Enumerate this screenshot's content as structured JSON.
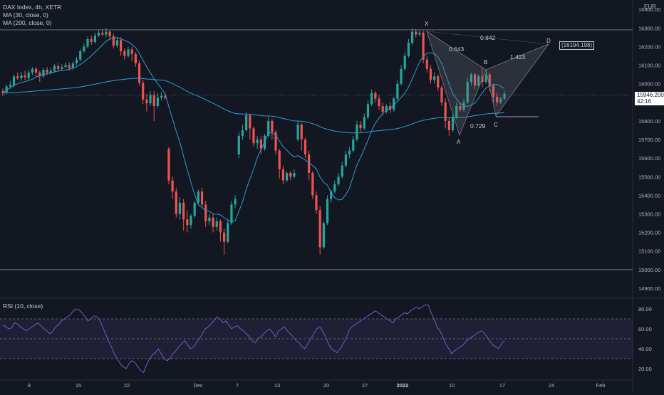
{
  "chart_data": {
    "type": "candlestick",
    "title": "DAX Index, 4h, XETR",
    "currency": "EUR",
    "overlays": [
      {
        "name": "MA (30, close, 0)",
        "color": "#2a9fd6"
      },
      {
        "name": "MA (200, close, 0)",
        "color": "#2a9fd6"
      }
    ],
    "colors": {
      "up": "#26a69a",
      "down": "#ef5350",
      "rsi": "#7e57c2",
      "pattern": "#787b86"
    },
    "price_axis": {
      "min": 14850,
      "max": 16420,
      "ticks": [
        "14900.00",
        "15000.00",
        "15100.00",
        "15200.00",
        "15300.00",
        "15400.00",
        "15500.00",
        "15600.00",
        "15700.00",
        "15800.00",
        "15900.00",
        "16000.00",
        "16100.00",
        "16200.00",
        "16300.00",
        "16400.00"
      ]
    },
    "time_axis": {
      "labels": [
        "8",
        "15",
        "22",
        "Dec",
        "7",
        "13",
        "20",
        "27",
        "2022",
        "10",
        "17",
        "24",
        "Feb"
      ]
    },
    "last_price": "15946.200",
    "countdown": "42:16",
    "horizontal_levels": [
      16290,
      15000,
      15940
    ],
    "pattern": {
      "points": {
        "X": "X",
        "A": "A",
        "B": "B",
        "C": "C",
        "D": "D"
      },
      "ratios": [
        "0.643",
        "0.842",
        "1.423",
        "0.729"
      ],
      "target": "(16194.198)"
    },
    "rsi": {
      "name": "RSI (10, close)",
      "levels": [
        70,
        50,
        30
      ],
      "ticks": [
        "80.00",
        "60.00",
        "40.00",
        "20.00"
      ],
      "values": [
        64,
        62,
        60,
        61,
        66,
        65,
        62,
        60,
        58,
        60,
        62,
        64,
        66,
        63,
        60,
        58,
        55,
        57,
        62,
        64,
        68,
        70,
        72,
        74,
        78,
        80,
        79,
        76,
        72,
        68,
        70,
        73,
        72,
        69,
        62,
        55,
        48,
        42,
        35,
        30,
        25,
        22,
        20,
        25,
        28,
        26,
        22,
        18,
        16,
        24,
        30,
        34,
        36,
        40,
        35,
        30,
        28,
        30,
        35,
        38,
        42,
        45,
        48,
        44,
        40,
        42,
        46,
        50,
        55,
        60,
        62,
        65,
        68,
        72,
        70,
        66,
        68,
        64,
        60,
        62,
        63,
        60,
        58,
        55,
        52,
        48,
        46,
        50,
        52,
        55,
        58,
        60,
        56,
        52,
        58,
        60,
        62,
        58,
        55,
        52,
        48,
        46,
        42,
        40,
        45,
        50,
        55,
        60,
        62,
        58,
        52,
        45,
        40,
        38,
        36,
        40,
        45,
        50,
        58,
        62,
        64,
        66,
        68,
        70,
        72,
        74,
        76,
        78,
        76,
        74,
        72,
        70,
        68,
        66,
        70,
        72,
        74,
        76,
        75,
        78,
        80,
        82,
        80,
        82,
        84,
        84,
        76,
        70,
        62,
        58,
        52,
        45,
        40,
        35,
        38,
        40,
        42,
        44,
        48,
        50,
        52,
        54,
        56,
        58,
        56,
        52,
        48,
        44,
        42,
        40,
        45,
        48
      ],
      "ylim": [
        10,
        90
      ]
    },
    "candles_ohlc_desc": "open/close pairs in index points, rendered chronologically left to right",
    "candles": [
      [
        15960,
        15950,
        15975,
        15935
      ],
      [
        15955,
        15985,
        15995,
        15945
      ],
      [
        15985,
        15995,
        16015,
        15975
      ],
      [
        15990,
        16040,
        16050,
        15980
      ],
      [
        16040,
        16030,
        16060,
        16020
      ],
      [
        16030,
        16045,
        16065,
        16015
      ],
      [
        16045,
        16035,
        16070,
        16020
      ],
      [
        16030,
        16060,
        16075,
        16020
      ],
      [
        16060,
        16080,
        16090,
        16045
      ],
      [
        16080,
        16060,
        16090,
        16040
      ],
      [
        16060,
        16040,
        16070,
        16010
      ],
      [
        16040,
        16075,
        16085,
        16030
      ],
      [
        16075,
        16060,
        16090,
        16045
      ],
      [
        16060,
        16070,
        16085,
        16050
      ],
      [
        16070,
        16095,
        16105,
        16060
      ],
      [
        16095,
        16080,
        16110,
        16065
      ],
      [
        16080,
        16090,
        16105,
        16070
      ],
      [
        16090,
        16100,
        16115,
        16085
      ],
      [
        16100,
        16085,
        16115,
        16070
      ],
      [
        16085,
        16110,
        16120,
        16075
      ],
      [
        16110,
        16130,
        16145,
        16100
      ],
      [
        16130,
        16175,
        16185,
        16120
      ],
      [
        16175,
        16200,
        16215,
        16165
      ],
      [
        16200,
        16240,
        16255,
        16190
      ],
      [
        16240,
        16225,
        16260,
        16210
      ],
      [
        16225,
        16260,
        16275,
        16215
      ],
      [
        16260,
        16275,
        16290,
        16250
      ],
      [
        16275,
        16265,
        16295,
        16255
      ],
      [
        16265,
        16280,
        16300,
        16250
      ],
      [
        16280,
        16255,
        16290,
        16235
      ],
      [
        16255,
        16205,
        16270,
        16190
      ],
      [
        16205,
        16235,
        16250,
        16195
      ],
      [
        16235,
        16175,
        16250,
        16150
      ],
      [
        16175,
        16150,
        16190,
        16130
      ],
      [
        16150,
        16185,
        16200,
        16140
      ],
      [
        16185,
        16160,
        16200,
        16120
      ],
      [
        16160,
        16110,
        16170,
        16090
      ],
      [
        16110,
        16005,
        16125,
        15990
      ],
      [
        16005,
        15915,
        16020,
        15890
      ],
      [
        15915,
        15895,
        15945,
        15850
      ],
      [
        15895,
        15940,
        15960,
        15880
      ],
      [
        15940,
        15880,
        15960,
        15800
      ],
      [
        15880,
        15925,
        15950,
        15870
      ],
      [
        15925,
        15935,
        15955,
        15910
      ],
      [
        15935,
        15925,
        15950,
        15915
      ],
      [
        15650,
        15480,
        15660,
        15460
      ],
      [
        15480,
        15420,
        15500,
        15380
      ],
      [
        15420,
        15300,
        15440,
        15280
      ],
      [
        15300,
        15360,
        15390,
        15270
      ],
      [
        15360,
        15270,
        15380,
        15210
      ],
      [
        15270,
        15240,
        15320,
        15200
      ],
      [
        15240,
        15290,
        15300,
        15220
      ],
      [
        15290,
        15360,
        15370,
        15280
      ],
      [
        15360,
        15420,
        15430,
        15350
      ],
      [
        15420,
        15350,
        15440,
        15330
      ],
      [
        15350,
        15260,
        15370,
        15230
      ],
      [
        15260,
        15280,
        15300,
        15240
      ],
      [
        15280,
        15230,
        15300,
        15200
      ],
      [
        15230,
        15260,
        15280,
        15210
      ],
      [
        15260,
        15200,
        15270,
        15150
      ],
      [
        15200,
        15150,
        15220,
        15080
      ],
      [
        15150,
        15250,
        15270,
        15140
      ],
      [
        15250,
        15350,
        15370,
        15240
      ],
      [
        15350,
        15380,
        15400,
        15330
      ],
      [
        15620,
        15720,
        15740,
        15600
      ],
      [
        15720,
        15750,
        15780,
        15700
      ],
      [
        15750,
        15830,
        15850,
        15740
      ],
      [
        15830,
        15760,
        15840,
        15700
      ],
      [
        15760,
        15680,
        15770,
        15660
      ],
      [
        15680,
        15700,
        15720,
        15650
      ],
      [
        15700,
        15650,
        15720,
        15620
      ],
      [
        15650,
        15720,
        15730,
        15640
      ],
      [
        15720,
        15800,
        15820,
        15710
      ],
      [
        15800,
        15740,
        15810,
        15700
      ],
      [
        15740,
        15640,
        15750,
        15620
      ],
      [
        15640,
        15540,
        15650,
        15490
      ],
      [
        15540,
        15480,
        15560,
        15460
      ],
      [
        15480,
        15520,
        15530,
        15470
      ],
      [
        15520,
        15500,
        15530,
        15480
      ],
      [
        15500,
        15520,
        15540,
        15490
      ],
      [
        15700,
        15780,
        15800,
        15690
      ],
      [
        15780,
        15700,
        15790,
        15640
      ],
      [
        15700,
        15620,
        15710,
        15600
      ],
      [
        15620,
        15520,
        15640,
        15480
      ],
      [
        15520,
        15400,
        15530,
        15380
      ],
      [
        15400,
        15320,
        15420,
        15300
      ],
      [
        15320,
        15120,
        15340,
        15080
      ],
      [
        15120,
        15250,
        15260,
        15110
      ],
      [
        15250,
        15380,
        15400,
        15240
      ],
      [
        15380,
        15420,
        15430,
        15360
      ],
      [
        15420,
        15460,
        15480,
        15410
      ],
      [
        15460,
        15500,
        15520,
        15450
      ],
      [
        15500,
        15560,
        15580,
        15490
      ],
      [
        15560,
        15620,
        15640,
        15550
      ],
      [
        15620,
        15640,
        15660,
        15600
      ],
      [
        15640,
        15700,
        15720,
        15630
      ],
      [
        15700,
        15780,
        15800,
        15690
      ],
      [
        15780,
        15760,
        15800,
        15740
      ],
      [
        15760,
        15820,
        15840,
        15750
      ],
      [
        15820,
        15890,
        15910,
        15810
      ],
      [
        15890,
        15950,
        15970,
        15880
      ],
      [
        15950,
        15920,
        15960,
        15900
      ],
      [
        15920,
        15880,
        15940,
        15860
      ],
      [
        15880,
        15850,
        15900,
        15830
      ],
      [
        15850,
        15880,
        15890,
        15840
      ],
      [
        15880,
        15860,
        15900,
        15840
      ],
      [
        15860,
        15920,
        15930,
        15850
      ],
      [
        15920,
        16000,
        16020,
        15910
      ],
      [
        16000,
        16080,
        16100,
        15990
      ],
      [
        16080,
        16150,
        16170,
        16070
      ],
      [
        16150,
        16220,
        16240,
        16140
      ],
      [
        16220,
        16280,
        16300,
        16210
      ],
      [
        16280,
        16265,
        16295,
        16250
      ],
      [
        16265,
        16275,
        16290,
        16255
      ],
      [
        16275,
        16130,
        16285,
        16110
      ],
      [
        16130,
        16080,
        16150,
        16060
      ],
      [
        16080,
        16020,
        16100,
        16000
      ],
      [
        16020,
        16040,
        16060,
        16000
      ],
      [
        16040,
        15980,
        16050,
        15960
      ],
      [
        15980,
        15900,
        15990,
        15880
      ],
      [
        15900,
        15800,
        15920,
        15760
      ],
      [
        15800,
        15750,
        15820,
        15720
      ],
      [
        15750,
        15820,
        15840,
        15740
      ],
      [
        15820,
        15880,
        15900,
        15810
      ],
      [
        15880,
        15860,
        15900,
        15850
      ],
      [
        15860,
        15900,
        15920,
        15850
      ],
      [
        15900,
        16010,
        16030,
        15890
      ],
      [
        16010,
        16050,
        16060,
        15990
      ],
      [
        16050,
        15990,
        16060,
        15970
      ],
      [
        15990,
        16040,
        16050,
        15980
      ],
      [
        16040,
        16010,
        16090,
        15980
      ],
      [
        16010,
        16050,
        16070,
        16000
      ],
      [
        16050,
        15990,
        16060,
        15960
      ],
      [
        15990,
        15930,
        16000,
        15900
      ],
      [
        15930,
        15900,
        15950,
        15880
      ],
      [
        15900,
        15920,
        15930,
        15890
      ],
      [
        15920,
        15946,
        15960,
        15910
      ]
    ]
  }
}
